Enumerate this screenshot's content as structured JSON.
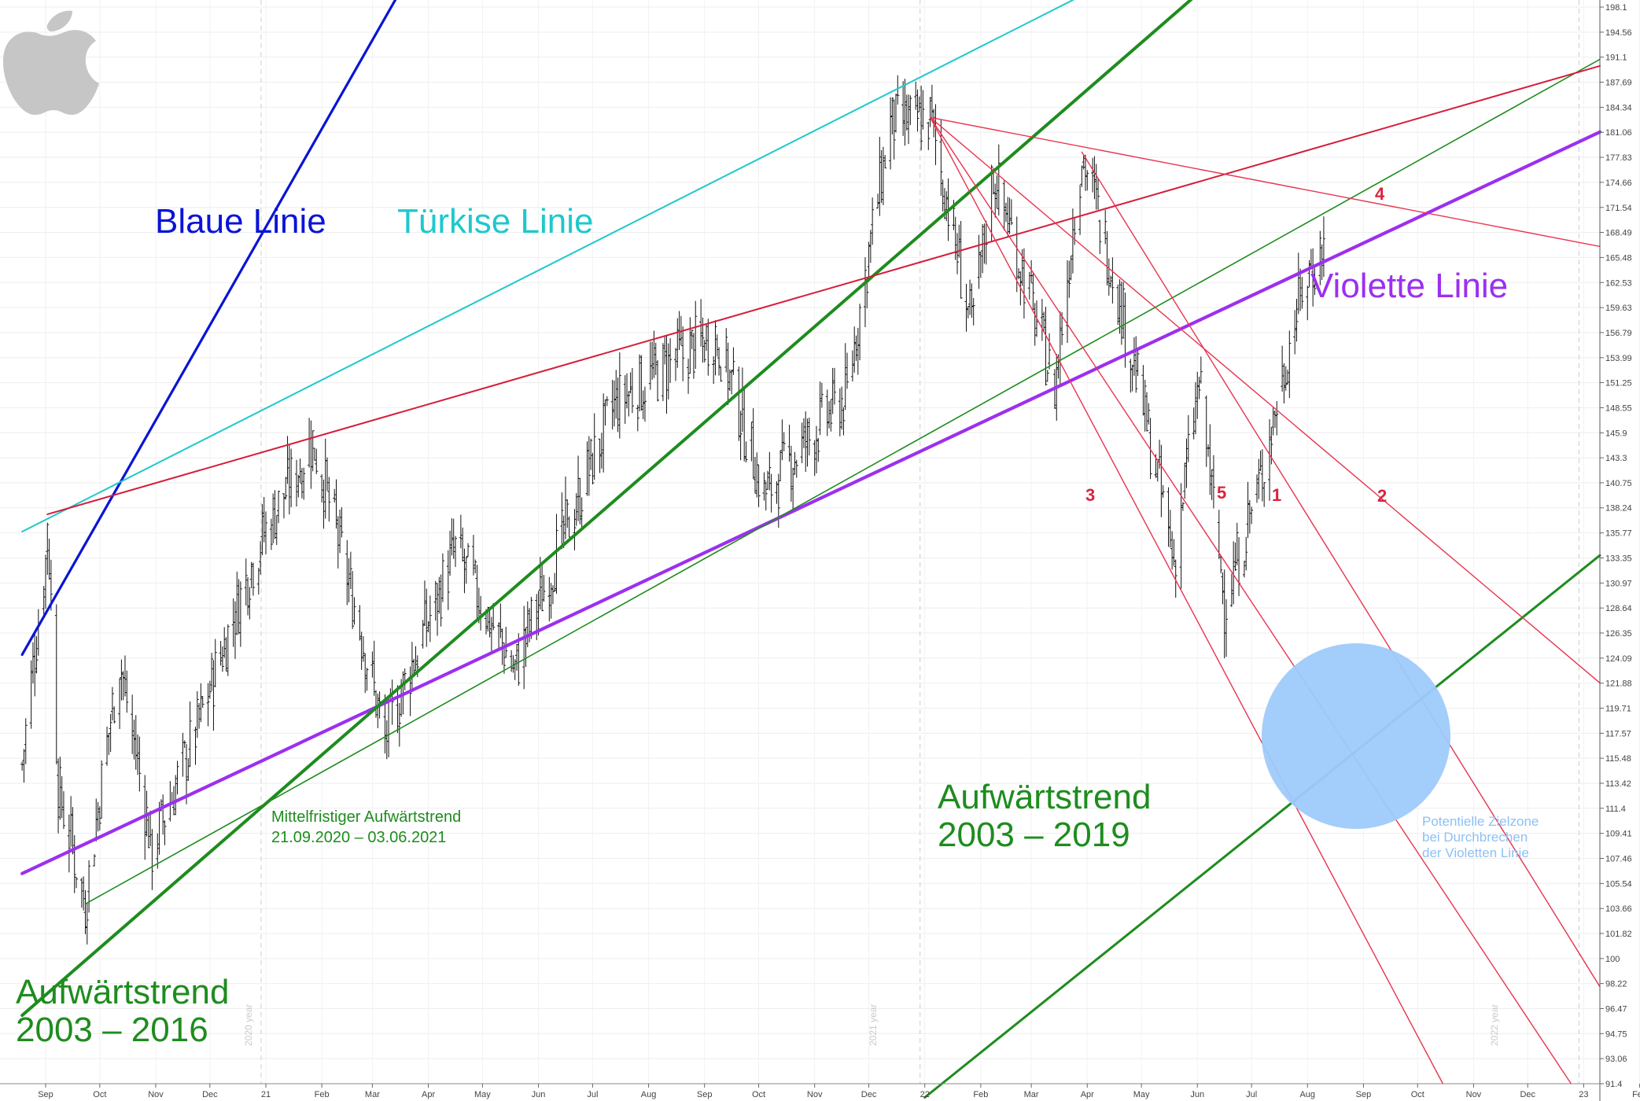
{
  "chart_data": {
    "type": "bar",
    "subtype": "ohlc-price-chart-with-trendlines",
    "logo": "apple-logo",
    "y_axis": {
      "position": "right",
      "ylim": [
        91.4,
        198.1
      ],
      "ticks": [
        "198.1",
        "194.56",
        "191.1",
        "187.69",
        "184.34",
        "181.06",
        "177.83",
        "174.66",
        "171.54",
        "168.49",
        "165.48",
        "162.53",
        "159.63",
        "156.79",
        "153.99",
        "151.25",
        "148.55",
        "145.9",
        "143.3",
        "140.75",
        "138.24",
        "135.77",
        "133.35",
        "130.97",
        "128.64",
        "126.35",
        "124.09",
        "121.88",
        "119.71",
        "117.57",
        "115.48",
        "113.42",
        "111.4",
        "109.41",
        "107.46",
        "105.54",
        "103.66",
        "101.82",
        "100",
        "98.22",
        "96.47",
        "94.75",
        "93.06",
        "91.4"
      ]
    },
    "x_axis": {
      "ticks": [
        "Sep",
        "Oct",
        "Nov",
        "Dec",
        "21",
        "Feb",
        "Mar",
        "Apr",
        "May",
        "Jun",
        "Jul",
        "Aug",
        "Sep",
        "Oct",
        "Nov",
        "Dec",
        "22",
        "Feb",
        "Mar",
        "Apr",
        "May",
        "Jun",
        "Jul",
        "Aug",
        "Sep",
        "Oct",
        "Nov",
        "Dec",
        "23",
        "Feb"
      ],
      "year_markers": [
        "2020 year",
        "2021 year",
        "2022 year"
      ]
    },
    "grid": true,
    "price_path": [
      [
        "2020-08-19",
        115.0
      ],
      [
        "2020-09-01",
        133.0
      ],
      [
        "2020-09-02",
        137.5
      ],
      [
        "2020-09-08",
        113.0
      ],
      [
        "2020-09-23",
        104.0
      ],
      [
        "2020-10-12",
        124.0
      ],
      [
        "2020-10-30",
        108.0
      ],
      [
        "2020-11-24",
        118.0
      ],
      [
        "2020-12-29",
        135.0
      ],
      [
        "2021-01-27",
        145.1
      ],
      [
        "2021-03-08",
        117.0
      ],
      [
        "2021-04-16",
        134.0
      ],
      [
        "2021-05-19",
        123.0
      ],
      [
        "2021-07-14",
        149.0
      ],
      [
        "2021-09-07",
        156.8
      ],
      [
        "2021-10-04",
        139.5
      ],
      [
        "2021-11-19",
        150.0
      ],
      [
        "2021-12-13",
        182.0
      ],
      [
        "2022-01-04",
        182.9
      ],
      [
        "2022-01-27",
        157.0
      ],
      [
        "2022-02-08",
        176.0
      ],
      [
        "2022-03-14",
        150.5
      ],
      [
        "2022-03-29",
        178.5
      ],
      [
        "2022-04-14",
        165.0
      ],
      [
        "2022-05-19",
        133.0
      ],
      [
        "2022-06-02",
        151.0
      ],
      [
        "2022-06-16",
        129.0
      ],
      [
        "2022-07-06",
        141.0
      ],
      [
        "2022-07-29",
        162.0
      ],
      [
        "2022-08-10",
        167.0
      ]
    ],
    "series": [
      {
        "name": "Blaue Linie",
        "color": "#0a14d6"
      },
      {
        "name": "Türkise Linie",
        "color": "#1fc8cc"
      },
      {
        "name": "Violette Linie",
        "color": "#9b30f0"
      },
      {
        "name": "Aufwärtstrend 2003 – 2016",
        "color": "#1e8c1e"
      },
      {
        "name": "Aufwärtstrend 2003 – 2019",
        "color": "#1e8c1e"
      },
      {
        "name": "Mittelfristiger Aufwärtstrend",
        "color": "#1e8c1e"
      },
      {
        "name": "1",
        "color": "#e8344f"
      },
      {
        "name": "2",
        "color": "#e8344f"
      },
      {
        "name": "3",
        "color": "#e8344f"
      },
      {
        "name": "4",
        "color": "#e8344f"
      },
      {
        "name": "5",
        "color": "#e8344f"
      }
    ],
    "annotations": {
      "blaue": "Blaue Linie",
      "tuerkise": "Türkise Linie",
      "violette": "Violette Linie",
      "trend2016_l1": "Aufwärtstrend",
      "trend2016_l2": "2003 – 2016",
      "trend2019_l1": "Aufwärtstrend",
      "trend2019_l2": "2003 – 2019",
      "mittel_l1": "Mittelfristiger Aufwärtstrend",
      "mittel_l2": "21.09.2020 – 03.06.2021",
      "zone_l1": "Potentielle Zielzone",
      "zone_l2": "bei Durchbrechen",
      "zone_l3": "der Violetten Linie",
      "n1": "1",
      "n2": "2",
      "n3": "3",
      "n4": "4",
      "n5": "5"
    },
    "target_zone": {
      "label": "Potentielle Zielzone bei Durchbrechen der Violetten Linie",
      "color": "#99c8fa",
      "price_center": 117.3,
      "date_center": "2022-10-02"
    }
  }
}
